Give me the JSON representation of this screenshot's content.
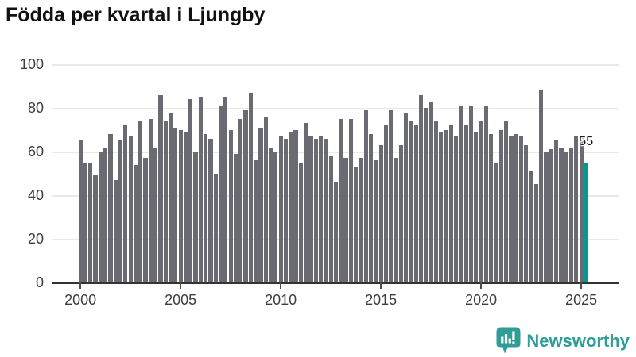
{
  "title": "Födda per kvartal i Ljungby",
  "annotation": {
    "label": "55"
  },
  "logo": {
    "text": "Newsworthy",
    "icon": "bar-chart-bubble-icon"
  },
  "colors": {
    "background": "#ffffff",
    "bar": "#6a6a72",
    "highlight": "#009a94",
    "grid": "#e9e9e9",
    "axis": "#333333",
    "tick": "#4d4d4d",
    "tick_label": "#3d3d3d",
    "title": "#111111",
    "annotation_text": "#1a1a1a",
    "logo": "#2f9d95"
  },
  "chart_data": {
    "type": "bar",
    "title": "Födda per kvartal i Ljungby",
    "xlabel": "",
    "ylabel": "",
    "unit": "births per quarter",
    "start_year": 2000,
    "start_quarter": 1,
    "end_year": 2025,
    "end_quarter": 2,
    "ylim": [
      0,
      100
    ],
    "y_ticks": [
      0,
      20,
      40,
      60,
      80,
      100
    ],
    "x_tick_labels": [
      "2000",
      "2005",
      "2010",
      "2015",
      "2020",
      "2025"
    ],
    "x_tick_bar_indices": [
      0,
      20,
      40,
      60,
      80,
      100
    ],
    "grid": true,
    "legend": false,
    "highlight_index": 101,
    "highlight_value_label": "55",
    "values": [
      65,
      55,
      55,
      49,
      60,
      62,
      68,
      47,
      65,
      72,
      67,
      54,
      74,
      57,
      75,
      62,
      86,
      74,
      78,
      71,
      70,
      69,
      84,
      60,
      85,
      68,
      66,
      50,
      81,
      85,
      70,
      59,
      75,
      79,
      87,
      56,
      71,
      76,
      62,
      60,
      67,
      66,
      69,
      70,
      55,
      73,
      67,
      66,
      67,
      66,
      58,
      46,
      75,
      57,
      75,
      53,
      57,
      79,
      68,
      56,
      63,
      72,
      79,
      57,
      63,
      78,
      74,
      72,
      86,
      80,
      83,
      74,
      69,
      70,
      72,
      67,
      81,
      72,
      81,
      69,
      74,
      81,
      68,
      55,
      70,
      74,
      67,
      68,
      67,
      63,
      51,
      45,
      88,
      60,
      61,
      65,
      62,
      60,
      62,
      67,
      67,
      55
    ]
  }
}
